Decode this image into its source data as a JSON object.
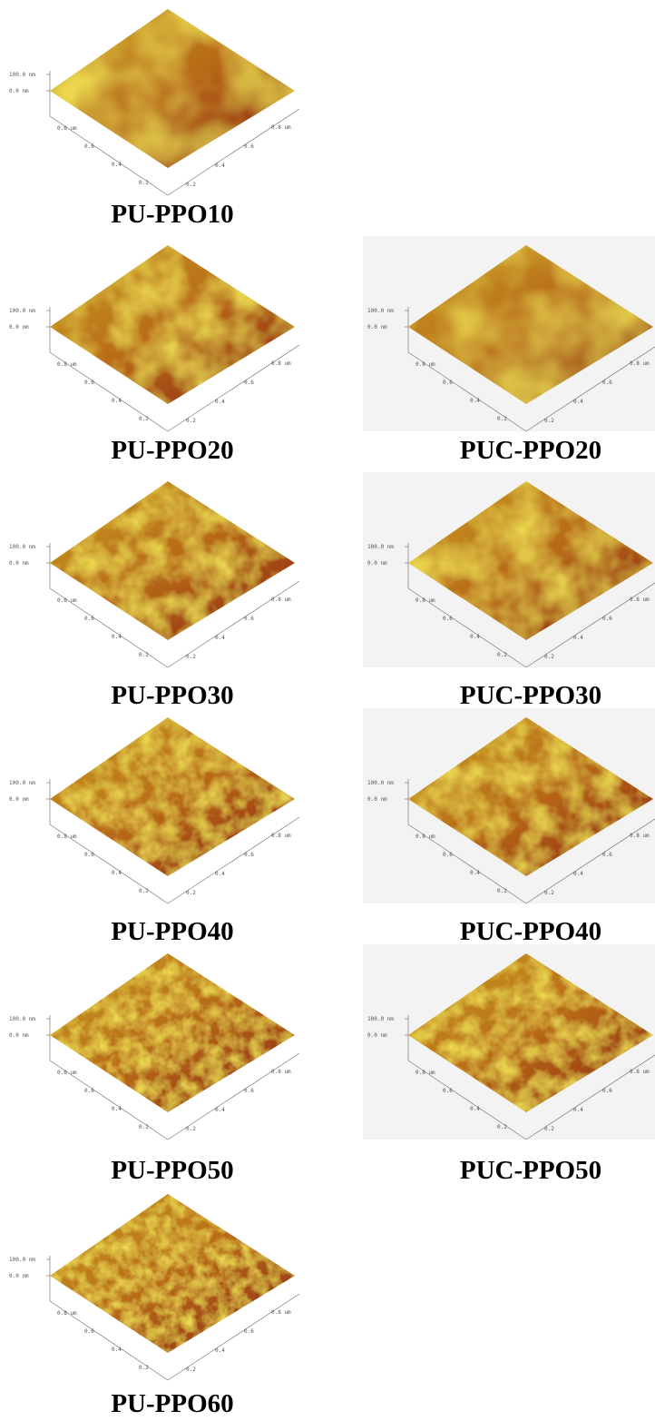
{
  "left_column": [
    {
      "label": "PU-PPO10",
      "z_labels": [
        "100.0 nm",
        "0.0 nm"
      ],
      "left_axis": [
        "0.8 um",
        "0.6",
        "0.4",
        "0.2"
      ],
      "right_axis": [
        "0.2",
        "0.4",
        "0.6",
        "0.8 um"
      ]
    },
    {
      "label": "PU-PPO20",
      "z_labels": [
        "100.0 nm",
        "0.0 nm"
      ],
      "left_axis": [
        "0.8 um",
        "0.6",
        "0.4",
        "0.2"
      ],
      "right_axis": [
        "0.2",
        "0.4",
        "0.6",
        "0.8 um"
      ]
    },
    {
      "label": "PU-PPO30",
      "z_labels": [
        "100.0 nm",
        "0.0 nm"
      ],
      "left_axis": [
        "0.8 um",
        "0.6",
        "0.4",
        "0.2"
      ],
      "right_axis": [
        "0.2",
        "0.4",
        "0.6",
        "0.8 um"
      ]
    },
    {
      "label": "PU-PPO40",
      "z_labels": [
        "100.0 nm",
        "0.0 nm"
      ],
      "left_axis": [
        "0.8 um",
        "0.6",
        "0.4",
        "0.2"
      ],
      "right_axis": [
        "0.2",
        "0.4",
        "0.6",
        "0.8 um"
      ]
    },
    {
      "label": "PU-PPO50",
      "z_labels": [
        "100.0 nm",
        "0.0 nm"
      ],
      "left_axis": [
        "0.8 um",
        "0.6",
        "0.4",
        "0.2"
      ],
      "right_axis": [
        "0.2",
        "0.4",
        "0.6",
        "0.8 um"
      ]
    },
    {
      "label": "PU-PPO60",
      "z_labels": [
        "100.0 nm",
        "0.0 nm"
      ],
      "left_axis": [
        "0.8 um",
        "0.6",
        "0.4",
        "0.2"
      ],
      "right_axis": [
        "0.2",
        "0.4",
        "0.6",
        "0.8 um"
      ]
    }
  ],
  "right_column": [
    {
      "label": "PUC-PPO20",
      "z_labels": [
        "100.0 nm",
        "0.0 nm"
      ],
      "left_axis": [
        "0.8 um",
        "0.6",
        "0.4",
        "0.2"
      ],
      "right_axis": [
        "0.2",
        "0.4",
        "0.6",
        "0.8 um"
      ]
    },
    {
      "label": "PUC-PPO30",
      "z_labels": [
        "100.0 nm",
        "0.0 nm"
      ],
      "left_axis": [
        "0.8 um",
        "0.6",
        "0.4",
        "0.2"
      ],
      "right_axis": [
        "0.2",
        "0.4",
        "0.6",
        "0.8 um"
      ]
    },
    {
      "label": "PUC-PPO40",
      "z_labels": [
        "100.0 nm",
        "0.0 nm"
      ],
      "left_axis": [
        "0.8 um",
        "0.6",
        "0.4",
        "0.2"
      ],
      "right_axis": [
        "0.2",
        "0.4",
        "0.6",
        "0.8 um"
      ]
    },
    {
      "label": "PUC-PPO50",
      "z_labels": [
        "100.0 nm",
        "0.0 nm"
      ],
      "left_axis": [
        "0.8 um",
        "0.6",
        "0.4",
        "0.2"
      ],
      "right_axis": [
        "0.2",
        "0.4",
        "0.6",
        "0.8 um"
      ]
    }
  ]
}
